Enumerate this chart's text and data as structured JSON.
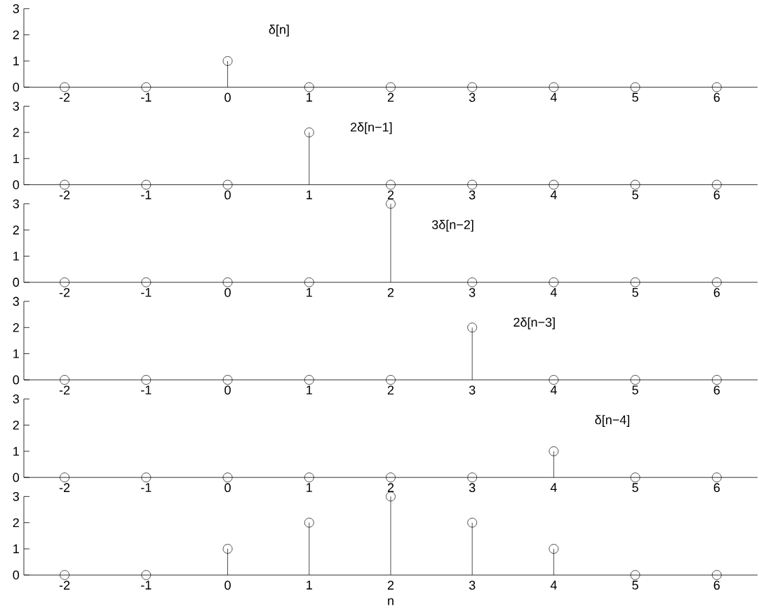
{
  "chart_data": [
    {
      "type": "lollipop",
      "x": [
        -2,
        -1,
        0,
        1,
        2,
        3,
        4,
        5,
        6
      ],
      "series": [
        {
          "name": "δ[n]",
          "color": "#000000",
          "values": [
            0,
            0,
            1,
            0,
            0,
            0,
            0,
            0,
            0
          ]
        }
      ],
      "xlim": [
        -2.5,
        6.5
      ],
      "ylim": [
        0,
        3
      ],
      "xticks": [
        -2,
        -1,
        0,
        1,
        2,
        3,
        4,
        5,
        6
      ],
      "yticks": [
        0,
        1,
        2,
        3
      ],
      "marker": "circle"
    },
    {
      "type": "lollipop",
      "x": [
        -2,
        -1,
        0,
        1,
        2,
        3,
        4,
        5,
        6
      ],
      "series": [
        {
          "name": "2δ[n−1]",
          "color": "#000000",
          "values": [
            0,
            0,
            0,
            2,
            0,
            0,
            0,
            0,
            0
          ]
        }
      ],
      "xlim": [
        -2.5,
        6.5
      ],
      "ylim": [
        0,
        3
      ],
      "xticks": [
        -2,
        -1,
        0,
        1,
        2,
        3,
        4,
        5,
        6
      ],
      "yticks": [
        0,
        1,
        2,
        3
      ],
      "marker": "circle"
    },
    {
      "type": "lollipop",
      "x": [
        -2,
        -1,
        0,
        1,
        2,
        3,
        4,
        5,
        6
      ],
      "series": [
        {
          "name": "3δ[n−2]",
          "color": "#000000",
          "values": [
            0,
            0,
            0,
            0,
            3,
            0,
            0,
            0,
            0
          ]
        }
      ],
      "xlim": [
        -2.5,
        6.5
      ],
      "ylim": [
        0,
        3
      ],
      "xticks": [
        -2,
        -1,
        0,
        1,
        2,
        3,
        4,
        5,
        6
      ],
      "yticks": [
        0,
        1,
        2,
        3
      ],
      "marker": "circle"
    },
    {
      "type": "lollipop",
      "x": [
        -2,
        -1,
        0,
        1,
        2,
        3,
        4,
        5,
        6
      ],
      "series": [
        {
          "name": "2δ[n−3]",
          "color": "#000000",
          "values": [
            0,
            0,
            0,
            0,
            0,
            2,
            0,
            0,
            0
          ]
        }
      ],
      "xlim": [
        -2.5,
        6.5
      ],
      "ylim": [
        0,
        3
      ],
      "xticks": [
        -2,
        -1,
        0,
        1,
        2,
        3,
        4,
        5,
        6
      ],
      "yticks": [
        0,
        1,
        2,
        3
      ],
      "marker": "circle"
    },
    {
      "type": "lollipop",
      "x": [
        -2,
        -1,
        0,
        1,
        2,
        3,
        4,
        5,
        6
      ],
      "series": [
        {
          "name": "δ[n−4]",
          "color": "#000000",
          "values": [
            0,
            0,
            0,
            0,
            0,
            0,
            1,
            0,
            0
          ]
        }
      ],
      "xlim": [
        -2.5,
        6.5
      ],
      "ylim": [
        0,
        3
      ],
      "xticks": [
        -2,
        -1,
        0,
        1,
        2,
        3,
        4,
        5,
        6
      ],
      "yticks": [
        0,
        1,
        2,
        3
      ],
      "marker": "circle"
    },
    {
      "type": "lollipop",
      "x": [
        -2,
        -1,
        0,
        1,
        2,
        3,
        4,
        5,
        6
      ],
      "series": [
        {
          "color": "#000000",
          "values": [
            0,
            0,
            1,
            2,
            3,
            2,
            1,
            0,
            0
          ]
        }
      ],
      "xlim": [
        -2.5,
        6.5
      ],
      "ylim": [
        0,
        3
      ],
      "xticks": [
        -2,
        -1,
        0,
        1,
        2,
        3,
        4,
        5,
        6
      ],
      "yticks": [
        0,
        1,
        2,
        3
      ],
      "marker": "circle",
      "xlabel": "n"
    }
  ]
}
